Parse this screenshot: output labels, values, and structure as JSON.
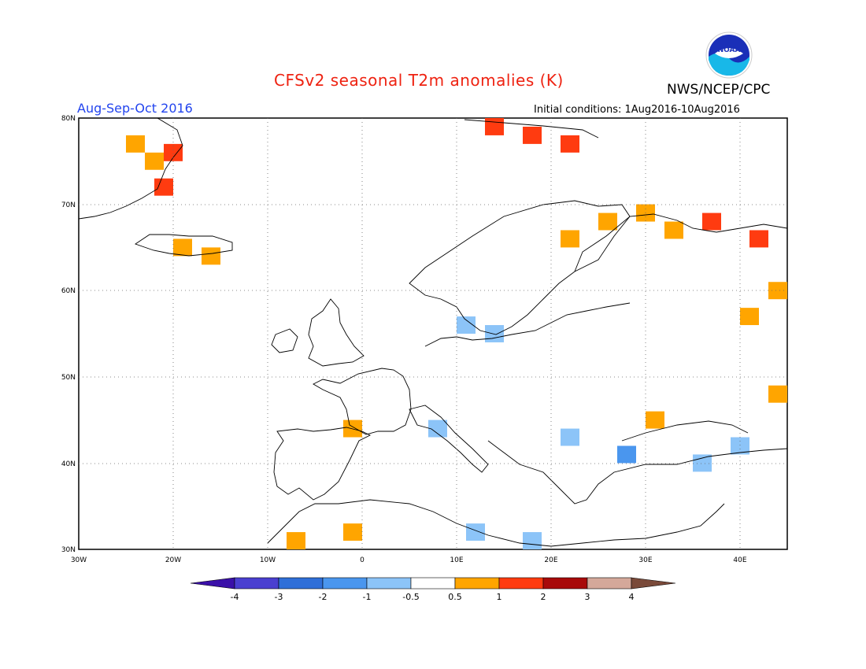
{
  "header": {
    "title": "CFSv2 seasonal T2m anomalies (K)",
    "agency": "NWS/NCEP/CPC",
    "season": "Aug-Sep-Oct 2016",
    "initial_conditions": "Initial conditions: 1Aug2016-10Aug2016",
    "logo_text": "NOAA"
  },
  "map": {
    "lon_range": [
      -30,
      45
    ],
    "lat_range": [
      30,
      80
    ],
    "gridlines": "dotted",
    "lon_ticks": [
      "30W",
      "20W",
      "10W",
      "0",
      "10E",
      "20E",
      "30E",
      "40E"
    ],
    "lat_ticks": [
      "80N",
      "70N",
      "60N",
      "50N",
      "40N",
      "30N"
    ]
  },
  "legend": {
    "labels": [
      "-4",
      "-3",
      "-2",
      "-1",
      "-0.5",
      "0.5",
      "1",
      "2",
      "3",
      "4"
    ],
    "colors": [
      "#3a10a8",
      "#4a3fd0",
      "#2f6fd8",
      "#4a96ee",
      "#8cc4f8",
      "#ffffff",
      "#ffa500",
      "#ff3b10",
      "#a80a0a",
      "#d4a89a",
      "#7a4a3a"
    ]
  },
  "anomaly_cells": [
    {
      "lon": -24,
      "lat": 77,
      "class": "warm1"
    },
    {
      "lon": -22,
      "lat": 75,
      "class": "warm1"
    },
    {
      "lon": -21,
      "lat": 72,
      "class": "warm2"
    },
    {
      "lon": -20,
      "lat": 76,
      "class": "warm2"
    },
    {
      "lon": -19,
      "lat": 65,
      "class": "warm1"
    },
    {
      "lon": -16,
      "lat": 64,
      "class": "warm1"
    },
    {
      "lon": 14,
      "lat": 79,
      "class": "warm2"
    },
    {
      "lon": 18,
      "lat": 78,
      "class": "warm2"
    },
    {
      "lon": 22,
      "lat": 77,
      "class": "warm2"
    },
    {
      "lon": 22,
      "lat": 66,
      "class": "warm1"
    },
    {
      "lon": 26,
      "lat": 68,
      "class": "warm1"
    },
    {
      "lon": 30,
      "lat": 69,
      "class": "warm1"
    },
    {
      "lon": 33,
      "lat": 67,
      "class": "warm1"
    },
    {
      "lon": 37,
      "lat": 68,
      "class": "warm2"
    },
    {
      "lon": 42,
      "lat": 66,
      "class": "warm2"
    },
    {
      "lon": 44,
      "lat": 60,
      "class": "warm1"
    },
    {
      "lon": 41,
      "lat": 57,
      "class": "warm1"
    },
    {
      "lon": 44,
      "lat": 48,
      "class": "warm1"
    },
    {
      "lon": 11,
      "lat": 56,
      "class": "cool1"
    },
    {
      "lon": 14,
      "lat": 55,
      "class": "cool1"
    },
    {
      "lon": 8,
      "lat": 44,
      "class": "cool1"
    },
    {
      "lon": 22,
      "lat": 43,
      "class": "cool1"
    },
    {
      "lon": 28,
      "lat": 41,
      "class": "cool2"
    },
    {
      "lon": 36,
      "lat": 40,
      "class": "cool1"
    },
    {
      "lon": 40,
      "lat": 42,
      "class": "cool1"
    },
    {
      "lon": 12,
      "lat": 32,
      "class": "cool1"
    },
    {
      "lon": 18,
      "lat": 31,
      "class": "cool1"
    },
    {
      "lon": -7,
      "lat": 31,
      "class": "warm1"
    },
    {
      "lon": -1,
      "lat": 32,
      "class": "warm1"
    },
    {
      "lon": -1,
      "lat": 44,
      "class": "warm1"
    },
    {
      "lon": 31,
      "lat": 45,
      "class": "warm1"
    }
  ]
}
